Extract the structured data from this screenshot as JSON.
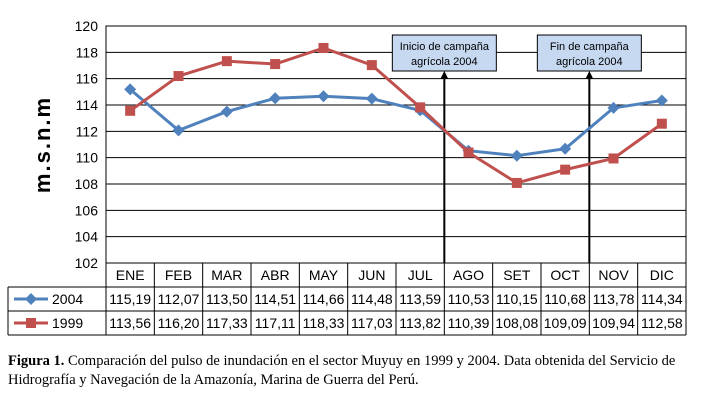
{
  "chart_data": {
    "type": "line",
    "title": "",
    "ylabel": "m.s.n.m",
    "xlabel": "",
    "ylim": [
      102,
      120
    ],
    "yticks": [
      102,
      104,
      106,
      108,
      110,
      112,
      114,
      116,
      118,
      120
    ],
    "grid": true,
    "categories": [
      "ENE",
      "FEB",
      "MAR",
      "ABR",
      "MAY",
      "JUN",
      "JUL",
      "AGO",
      "SET",
      "OCT",
      "NOV",
      "DIC"
    ],
    "series": [
      {
        "name": "2004",
        "color": "#4f81bd",
        "marker": "diamond",
        "values": [
          115.19,
          112.07,
          113.5,
          114.51,
          114.66,
          114.48,
          113.59,
          110.53,
          110.15,
          110.68,
          113.78,
          114.34
        ],
        "labels": [
          "115,19",
          "112,07",
          "113,50",
          "114,51",
          "114,66",
          "114,48",
          "113,59",
          "110,53",
          "110,15",
          "110,68",
          "113,78",
          "114,34"
        ]
      },
      {
        "name": "1999",
        "color": "#c0504d",
        "marker": "square",
        "values": [
          113.56,
          116.2,
          117.33,
          117.11,
          118.33,
          117.03,
          113.82,
          110.39,
          108.08,
          109.09,
          109.94,
          112.58
        ],
        "labels": [
          "113,56",
          "116,20",
          "117,33",
          "117,11",
          "118,33",
          "117,03",
          "113,82",
          "110,39",
          "108,08",
          "109,09",
          "109,94",
          "112,58"
        ]
      }
    ],
    "annotations": [
      {
        "line1": "Inicio de campaña",
        "line2": "agrícola 2004",
        "category": "AGO"
      },
      {
        "line1": "Fin de campaña",
        "line2": "agrícola 2004",
        "category": "NOV"
      }
    ],
    "legend": "data-table"
  },
  "caption": {
    "label": "Figura 1.",
    "text": " Comparación del pulso de inundación en el sector Muyuy en 1999 y 2004. Data obtenida del Servicio de Hidrografía y Navegación de la Amazonía, Marina de Guerra del Perú."
  }
}
